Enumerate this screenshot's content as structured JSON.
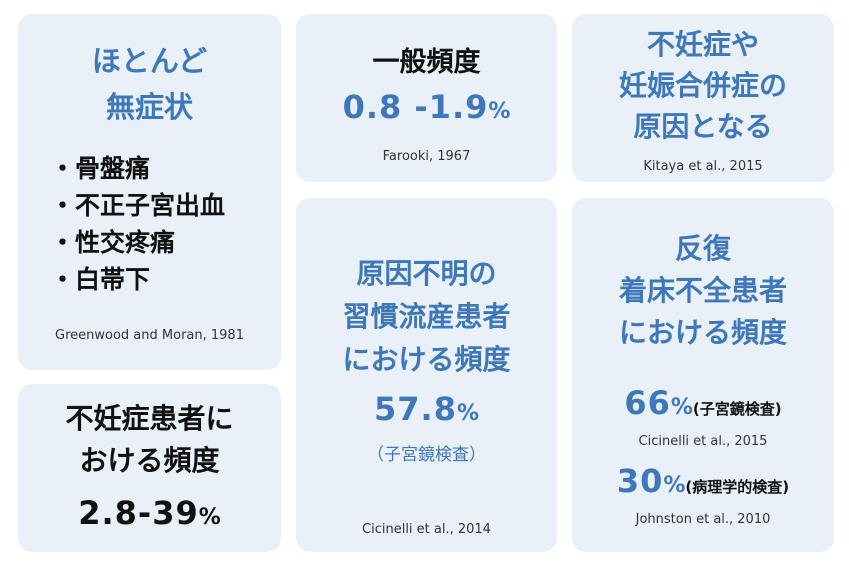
{
  "card1": {
    "title": [
      "ほとんど",
      "無症状"
    ],
    "symptoms": [
      "・骨盤痛",
      "・不正子宮出血",
      "・性交疼痛",
      "・白帯下"
    ],
    "citation": "Greenwood and Moran, 1981"
  },
  "card2": {
    "label": "一般頻度",
    "value": "0.8 -1.9",
    "unit": "%",
    "citation": "Farooki, 1967"
  },
  "card3": {
    "title": [
      "不妊症や",
      "妊娠合併症の",
      "原因となる"
    ],
    "citation": "Kitaya et al., 2015"
  },
  "card4": {
    "title": [
      "不妊症患者に",
      "おける頻度"
    ],
    "value": "2.8-39",
    "unit": "%"
  },
  "card5": {
    "title": [
      "原因不明の",
      "習慣流産患者",
      "における頻度"
    ],
    "value": "57.8",
    "unit": "%",
    "method": "（子宮鏡検査）",
    "citation": "Cicinelli et al., 2014"
  },
  "card6": {
    "title": [
      "反復",
      "着床不全患者",
      "における頻度"
    ],
    "value1": "66",
    "unit1": "%",
    "method1": "(子宮鏡検査)",
    "citation1": "Cicinelli et al., 2015",
    "value2": "30",
    "unit2": "%",
    "method2": "(病理学的検査)",
    "citation2": "Johnston et al., 2010"
  }
}
